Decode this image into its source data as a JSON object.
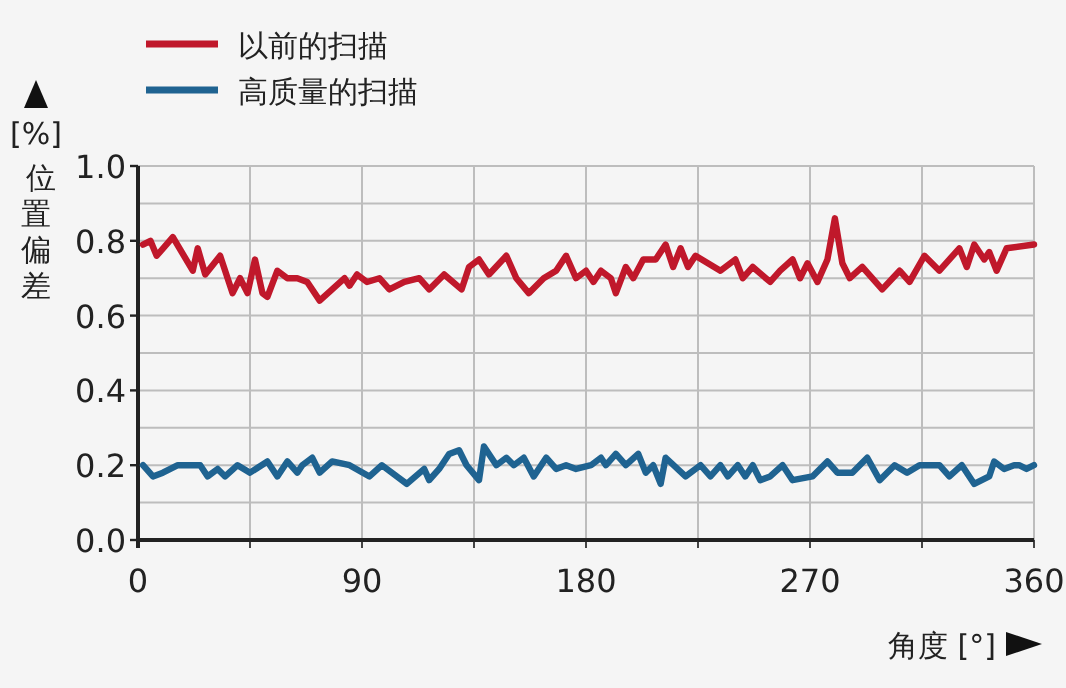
{
  "chart_data": {
    "type": "line",
    "xlabel": "角度 [°]",
    "ylabel": "[%] 位置偏差",
    "legend": "top left",
    "grid": true,
    "xlim": [
      0,
      360
    ],
    "ylim": [
      0,
      1.0
    ],
    "xticks": [
      0,
      {
        "value": 45,
        "label": null
      },
      90,
      {
        "value": 135,
        "label": null
      },
      180,
      {
        "value": 225,
        "label": null
      },
      270,
      {
        "value": 315,
        "label": null
      },
      360
    ],
    "yticks": [
      {
        "value": 0,
        "label": "0.0"
      },
      {
        "value": 0.1,
        "label": null
      },
      {
        "value": 0.2,
        "label": "0.2"
      },
      {
        "value": 0.3,
        "label": null
      },
      {
        "value": 0.4,
        "label": "0.4"
      },
      {
        "value": 0.5,
        "label": null
      },
      {
        "value": 0.6,
        "label": "0.6"
      },
      {
        "value": 0.7,
        "label": null
      },
      {
        "value": 0.8,
        "label": "0.8"
      },
      {
        "value": 0.9,
        "label": null
      },
      {
        "value": 1.0,
        "label": "1.0"
      }
    ],
    "series": [
      {
        "name": "以前的扫描",
        "color": "#c0182b",
        "x": [
          2,
          5,
          7.5,
          14,
          22,
          24,
          27,
          33,
          38,
          41,
          44,
          47,
          50,
          52,
          56,
          60,
          64,
          68,
          73,
          78,
          83,
          85,
          88,
          92,
          97,
          101,
          107,
          113,
          117,
          123,
          130,
          133,
          137,
          141,
          148,
          152,
          157,
          163,
          168,
          172,
          176,
          180,
          183,
          186,
          190,
          192,
          196,
          199,
          203,
          208,
          212,
          215,
          218,
          221,
          224,
          234,
          240,
          243,
          247,
          254,
          258,
          263,
          266,
          269,
          273,
          277,
          280,
          283,
          286,
          291,
          299,
          306,
          310,
          316,
          322,
          330,
          333,
          336,
          340,
          342,
          345,
          349,
          360
        ],
        "values": [
          0.79,
          0.8,
          0.76,
          0.81,
          0.72,
          0.78,
          0.71,
          0.76,
          0.66,
          0.7,
          0.66,
          0.75,
          0.66,
          0.65,
          0.72,
          0.7,
          0.7,
          0.69,
          0.64,
          0.67,
          0.7,
          0.68,
          0.71,
          0.69,
          0.7,
          0.67,
          0.69,
          0.7,
          0.67,
          0.71,
          0.67,
          0.73,
          0.75,
          0.71,
          0.76,
          0.7,
          0.66,
          0.7,
          0.72,
          0.76,
          0.7,
          0.72,
          0.69,
          0.72,
          0.7,
          0.66,
          0.73,
          0.7,
          0.75,
          0.75,
          0.79,
          0.73,
          0.78,
          0.73,
          0.76,
          0.72,
          0.75,
          0.7,
          0.73,
          0.69,
          0.72,
          0.75,
          0.7,
          0.74,
          0.69,
          0.75,
          0.86,
          0.74,
          0.7,
          0.73,
          0.67,
          0.72,
          0.69,
          0.76,
          0.72,
          0.78,
          0.73,
          0.79,
          0.75,
          0.77,
          0.72,
          0.78,
          0.79
        ]
      },
      {
        "name": "高质量的扫描",
        "color": "#1f6391",
        "x": [
          2,
          6,
          10,
          16,
          20,
          25,
          28,
          32,
          35,
          40,
          45,
          52,
          56,
          60,
          64,
          66,
          70,
          73,
          78,
          85,
          93,
          98,
          108,
          115,
          117,
          121,
          125,
          129,
          132,
          137,
          139,
          144,
          148,
          151,
          155,
          159,
          164,
          168,
          172,
          176,
          182,
          186,
          188,
          192,
          196,
          201,
          204,
          207,
          210,
          212,
          220,
          226,
          230,
          234,
          237,
          241,
          244,
          247,
          250,
          254,
          259,
          263,
          271,
          277,
          281,
          287,
          293,
          298,
          304,
          309,
          314,
          322,
          326,
          331,
          336,
          342,
          344,
          348,
          352,
          354,
          357,
          360
        ],
        "values": [
          0.2,
          0.17,
          0.18,
          0.2,
          0.2,
          0.2,
          0.17,
          0.19,
          0.17,
          0.2,
          0.18,
          0.21,
          0.17,
          0.21,
          0.18,
          0.2,
          0.22,
          0.18,
          0.21,
          0.2,
          0.17,
          0.2,
          0.15,
          0.19,
          0.16,
          0.19,
          0.23,
          0.24,
          0.2,
          0.16,
          0.25,
          0.2,
          0.22,
          0.2,
          0.22,
          0.17,
          0.22,
          0.19,
          0.2,
          0.19,
          0.2,
          0.22,
          0.2,
          0.23,
          0.2,
          0.23,
          0.18,
          0.2,
          0.15,
          0.22,
          0.17,
          0.2,
          0.17,
          0.2,
          0.17,
          0.2,
          0.17,
          0.2,
          0.16,
          0.17,
          0.2,
          0.16,
          0.17,
          0.21,
          0.18,
          0.18,
          0.22,
          0.16,
          0.2,
          0.18,
          0.2,
          0.2,
          0.17,
          0.2,
          0.15,
          0.17,
          0.21,
          0.19,
          0.2,
          0.2,
          0.19,
          0.2
        ]
      }
    ]
  }
}
